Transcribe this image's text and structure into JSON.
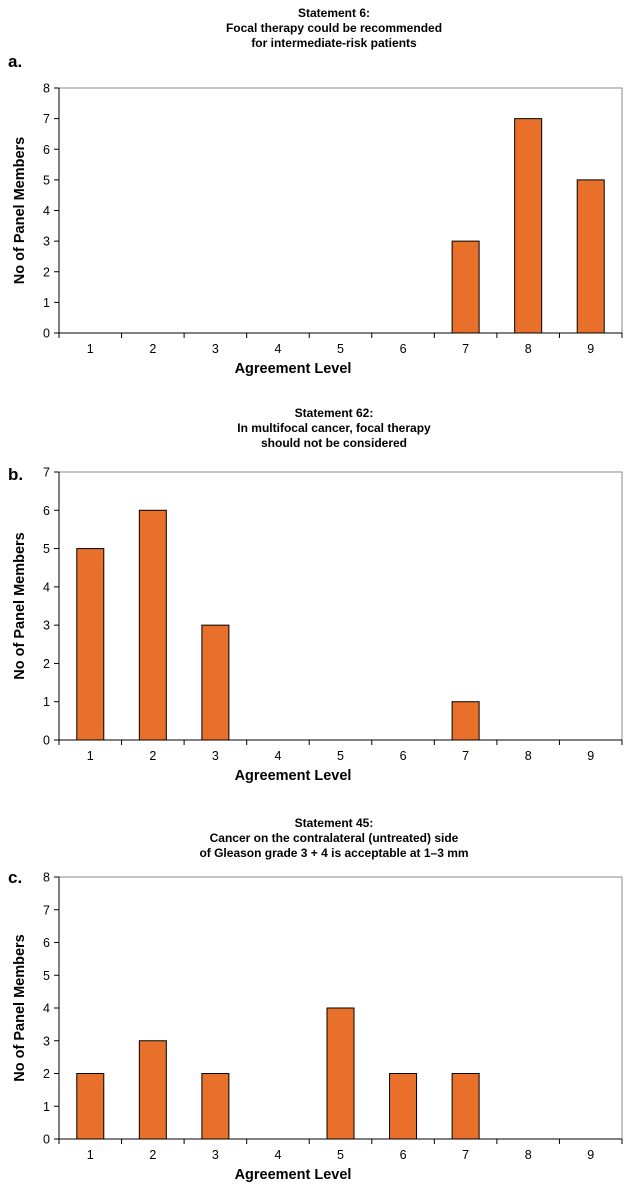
{
  "chart_data": [
    {
      "type": "bar",
      "panel": "a.",
      "title": [
        "Statement 6:",
        "Focal therapy could be recommended",
        "for intermediate-risk patients"
      ],
      "xlabel": "Agreement Level",
      "ylabel": "No of Panel Members",
      "categories": [
        "1",
        "2",
        "3",
        "4",
        "5",
        "6",
        "7",
        "8",
        "9"
      ],
      "values": [
        0,
        0,
        0,
        0,
        0,
        0,
        3,
        7,
        5
      ],
      "ylim": [
        0,
        8
      ],
      "grid": false,
      "colors": {
        "bar": "#e8702a"
      }
    },
    {
      "type": "bar",
      "panel": "b.",
      "title": [
        "Statement 62:",
        "In multifocal cancer, focal therapy",
        "should not be considered"
      ],
      "xlabel": "Agreement Level",
      "ylabel": "No of Panel Members",
      "categories": [
        "1",
        "2",
        "3",
        "4",
        "5",
        "6",
        "7",
        "8",
        "9"
      ],
      "values": [
        5,
        6,
        3,
        0,
        0,
        0,
        1,
        0,
        0
      ],
      "ylim": [
        0,
        7
      ],
      "grid": false,
      "colors": {
        "bar": "#e8702a"
      }
    },
    {
      "type": "bar",
      "panel": "c.",
      "title": [
        "Statement 45:",
        "Cancer on the contralateral (untreated) side",
        "of Gleason grade 3 + 4 is acceptable at 1–3 mm"
      ],
      "xlabel": "Agreement Level",
      "ylabel": "No of Panel Members",
      "categories": [
        "1",
        "2",
        "3",
        "4",
        "5",
        "6",
        "7",
        "8",
        "9"
      ],
      "values": [
        2,
        3,
        2,
        0,
        4,
        2,
        2,
        0,
        0
      ],
      "ylim": [
        0,
        8
      ],
      "grid": false,
      "colors": {
        "bar": "#e8702a"
      }
    }
  ]
}
